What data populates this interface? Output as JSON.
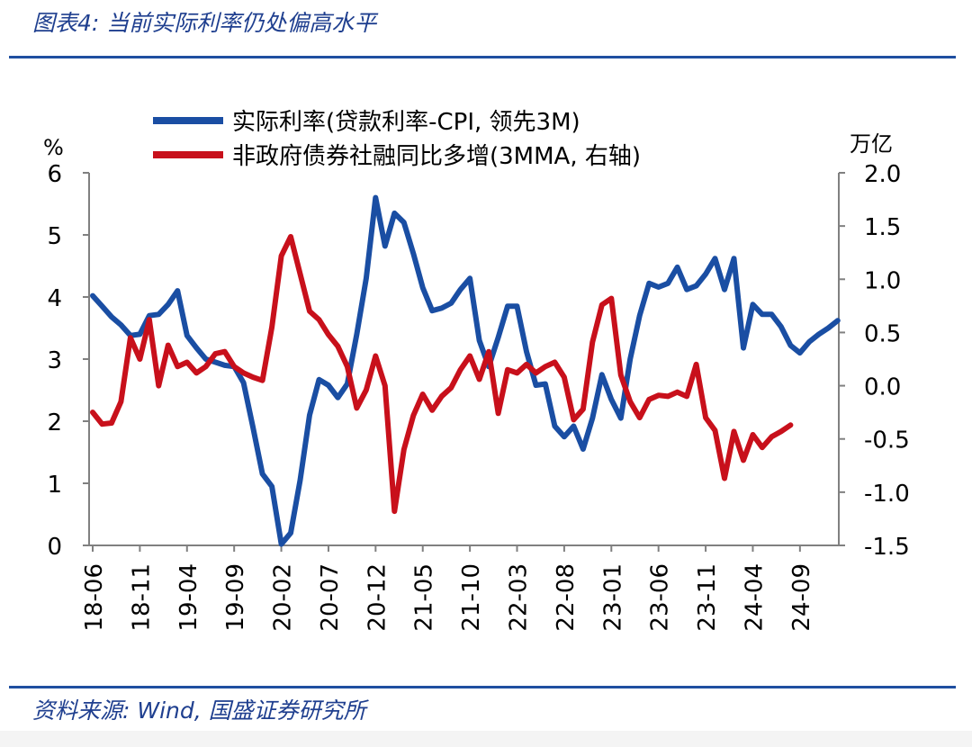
{
  "header": {
    "title": "图表4:  当前实际利率仍处偏高水平"
  },
  "footer": {
    "source": "资料来源:  Wind, 国盛证券研究所"
  },
  "colors": {
    "header_text": "#1f3f8f",
    "rule": "#1f4fa0",
    "real_rate_line": "#1a4ea3",
    "tsf_line": "#c8101b",
    "axis": "#808080"
  },
  "chart_data": {
    "type": "line",
    "y_left_unit": "%",
    "y_right_unit": "万亿",
    "ylim_left": [
      0,
      6
    ],
    "ylim_right": [
      -1.5,
      2.0
    ],
    "y_left_ticks": [
      "0",
      "1",
      "2",
      "3",
      "4",
      "5",
      "6"
    ],
    "y_right_ticks": [
      "-1.5",
      "-1.0",
      "-0.5",
      "0.0",
      "0.5",
      "1.0",
      "1.5",
      "2.0"
    ],
    "x_start": "2018-06",
    "x_ticks": [
      "18-06",
      "18-11",
      "19-04",
      "19-09",
      "20-02",
      "20-07",
      "20-12",
      "21-05",
      "21-10",
      "22-03",
      "22-08",
      "23-01",
      "23-06",
      "23-11",
      "24-04",
      "24-09"
    ],
    "grid": false,
    "legend_position": "top",
    "series": [
      {
        "name": "实际利率(贷款利率-CPI, 领先3M)",
        "axis": "left",
        "values": [
          4.02,
          3.85,
          3.68,
          3.55,
          3.38,
          3.4,
          3.7,
          3.72,
          3.88,
          4.1,
          3.38,
          3.18,
          3.0,
          2.95,
          2.9,
          2.88,
          2.62,
          1.9,
          1.15,
          0.95,
          0.02,
          0.2,
          1.05,
          2.1,
          2.67,
          2.58,
          2.38,
          2.6,
          3.4,
          4.3,
          5.6,
          4.82,
          5.35,
          5.2,
          4.7,
          4.15,
          3.78,
          3.82,
          3.9,
          4.12,
          4.3,
          3.3,
          2.88,
          3.35,
          3.85,
          3.85,
          3.12,
          2.58,
          2.6,
          1.92,
          1.75,
          1.92,
          1.55,
          2.05,
          2.75,
          2.35,
          2.05,
          3.0,
          3.7,
          4.22,
          4.16,
          4.22,
          4.48,
          4.12,
          4.18,
          4.37,
          4.62,
          4.12,
          4.62,
          3.18,
          3.88,
          3.72,
          3.72,
          3.52,
          3.22,
          3.1,
          3.28,
          3.4,
          3.5,
          3.62
        ]
      },
      {
        "name": "非政府债券社融同比多增(3MMA, 右轴)",
        "axis": "right",
        "values": [
          -0.25,
          -0.36,
          -0.35,
          -0.15,
          0.45,
          0.25,
          0.62,
          0.0,
          0.38,
          0.18,
          0.22,
          0.12,
          0.18,
          0.3,
          0.32,
          0.18,
          0.12,
          0.08,
          0.05,
          0.55,
          1.22,
          1.4,
          1.05,
          0.7,
          0.62,
          0.48,
          0.37,
          0.18,
          -0.21,
          -0.04,
          0.28,
          0.0,
          -1.18,
          -0.6,
          -0.28,
          -0.08,
          -0.23,
          -0.1,
          -0.02,
          0.15,
          0.28,
          0.06,
          0.32,
          -0.26,
          0.15,
          0.12,
          0.2,
          0.12,
          0.18,
          0.22,
          0.08,
          -0.32,
          -0.22,
          0.41,
          0.76,
          0.82,
          0.1,
          -0.15,
          -0.3,
          -0.13,
          -0.09,
          -0.1,
          -0.06,
          -0.1,
          0.2,
          -0.3,
          -0.42,
          -0.87,
          -0.43,
          -0.7,
          -0.46,
          -0.58,
          -0.48,
          -0.43,
          -0.37
        ]
      }
    ]
  }
}
